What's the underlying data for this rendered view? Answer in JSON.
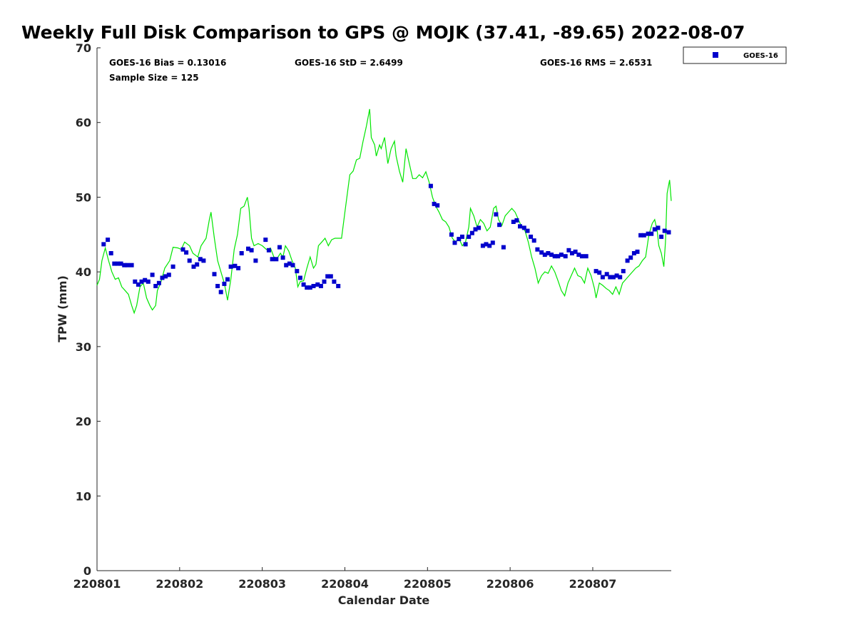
{
  "chart_data": {
    "type": "scatter",
    "title": "Weekly Full Disk Comparison to GPS @ MOJK (37.41, -89.65) 2022-08-07",
    "xlabel": "Calendar Date",
    "ylabel": "TPW (mm)",
    "ylim": [
      0,
      70
    ],
    "xlim": [
      0,
      6.95
    ],
    "yticks": [
      "0",
      "10",
      "20",
      "30",
      "40",
      "50",
      "60",
      "70"
    ],
    "xticks": [
      "220801",
      "220802",
      "220803",
      "220804",
      "220805",
      "220806",
      "220807"
    ],
    "grid": false,
    "legend_position": "outside-top-right",
    "stats": {
      "bias": "GOES-16 Bias = 0.13016",
      "std": "GOES-16 StD = 2.6499",
      "rms": "GOES-16 RMS = 2.6531",
      "sample": "Sample Size = 125"
    },
    "series": [
      {
        "name": "GOES-16",
        "kind": "markers",
        "color": "#0000cc",
        "points": [
          [
            0.08,
            43.7
          ],
          [
            0.13,
            44.3
          ],
          [
            0.17,
            42.5
          ],
          [
            0.21,
            41.1
          ],
          [
            0.25,
            41.1
          ],
          [
            0.29,
            41.1
          ],
          [
            0.33,
            40.9
          ],
          [
            0.37,
            40.9
          ],
          [
            0.42,
            40.9
          ],
          [
            0.46,
            38.7
          ],
          [
            0.5,
            38.3
          ],
          [
            0.54,
            38.7
          ],
          [
            0.58,
            38.9
          ],
          [
            0.62,
            38.7
          ],
          [
            0.67,
            39.6
          ],
          [
            0.71,
            38.1
          ],
          [
            0.75,
            38.5
          ],
          [
            0.79,
            39.2
          ],
          [
            0.83,
            39.4
          ],
          [
            0.87,
            39.6
          ],
          [
            0.92,
            40.7
          ],
          [
            1.04,
            43.0
          ],
          [
            1.08,
            42.6
          ],
          [
            1.12,
            41.5
          ],
          [
            1.17,
            40.7
          ],
          [
            1.21,
            41.0
          ],
          [
            1.25,
            41.7
          ],
          [
            1.29,
            41.5
          ],
          [
            1.42,
            39.7
          ],
          [
            1.46,
            38.1
          ],
          [
            1.5,
            37.3
          ],
          [
            1.54,
            38.4
          ],
          [
            1.58,
            39.0
          ],
          [
            1.62,
            40.7
          ],
          [
            1.67,
            40.8
          ],
          [
            1.71,
            40.5
          ],
          [
            1.75,
            42.5
          ],
          [
            1.83,
            43.1
          ],
          [
            1.87,
            42.9
          ],
          [
            1.92,
            41.5
          ],
          [
            2.04,
            44.3
          ],
          [
            2.08,
            42.9
          ],
          [
            2.12,
            41.7
          ],
          [
            2.17,
            41.7
          ],
          [
            2.21,
            43.3
          ],
          [
            2.25,
            41.9
          ],
          [
            2.29,
            40.9
          ],
          [
            2.33,
            41.1
          ],
          [
            2.37,
            40.9
          ],
          [
            2.42,
            40.1
          ],
          [
            2.46,
            39.2
          ],
          [
            2.5,
            38.3
          ],
          [
            2.54,
            37.9
          ],
          [
            2.58,
            37.9
          ],
          [
            2.62,
            38.1
          ],
          [
            2.67,
            38.3
          ],
          [
            2.71,
            38.1
          ],
          [
            2.75,
            38.7
          ],
          [
            2.79,
            39.4
          ],
          [
            2.83,
            39.4
          ],
          [
            2.87,
            38.7
          ],
          [
            2.92,
            38.1
          ],
          [
            4.04,
            51.5
          ],
          [
            4.08,
            49.1
          ],
          [
            4.12,
            48.9
          ],
          [
            4.29,
            45.0
          ],
          [
            4.33,
            43.9
          ],
          [
            4.38,
            44.4
          ],
          [
            4.42,
            44.7
          ],
          [
            4.46,
            43.7
          ],
          [
            4.5,
            44.7
          ],
          [
            4.54,
            45.2
          ],
          [
            4.58,
            45.7
          ],
          [
            4.62,
            45.9
          ],
          [
            4.67,
            43.5
          ],
          [
            4.71,
            43.7
          ],
          [
            4.75,
            43.5
          ],
          [
            4.79,
            43.9
          ],
          [
            4.83,
            47.7
          ],
          [
            4.87,
            46.3
          ],
          [
            4.92,
            43.3
          ],
          [
            5.04,
            46.7
          ],
          [
            5.08,
            46.9
          ],
          [
            5.12,
            46.1
          ],
          [
            5.17,
            45.9
          ],
          [
            5.21,
            45.5
          ],
          [
            5.25,
            44.7
          ],
          [
            5.29,
            44.2
          ],
          [
            5.33,
            43.0
          ],
          [
            5.38,
            42.6
          ],
          [
            5.42,
            42.3
          ],
          [
            5.46,
            42.5
          ],
          [
            5.5,
            42.3
          ],
          [
            5.54,
            42.1
          ],
          [
            5.58,
            42.1
          ],
          [
            5.62,
            42.3
          ],
          [
            5.67,
            42.1
          ],
          [
            5.71,
            42.9
          ],
          [
            5.75,
            42.5
          ],
          [
            5.79,
            42.7
          ],
          [
            5.83,
            42.3
          ],
          [
            5.87,
            42.1
          ],
          [
            5.92,
            42.1
          ],
          [
            6.04,
            40.1
          ],
          [
            6.08,
            39.9
          ],
          [
            6.12,
            39.3
          ],
          [
            6.17,
            39.7
          ],
          [
            6.21,
            39.3
          ],
          [
            6.25,
            39.3
          ],
          [
            6.29,
            39.5
          ],
          [
            6.33,
            39.3
          ],
          [
            6.37,
            40.1
          ],
          [
            6.42,
            41.5
          ],
          [
            6.46,
            41.9
          ],
          [
            6.5,
            42.5
          ],
          [
            6.54,
            42.7
          ],
          [
            6.58,
            44.9
          ],
          [
            6.62,
            44.9
          ],
          [
            6.67,
            45.1
          ],
          [
            6.71,
            45.1
          ],
          [
            6.75,
            45.7
          ],
          [
            6.79,
            45.9
          ],
          [
            6.83,
            44.7
          ],
          [
            6.87,
            45.5
          ],
          [
            6.92,
            45.3
          ]
        ]
      },
      {
        "name": "GPS",
        "kind": "line",
        "color": "#00e600",
        "points": [
          [
            0.0,
            38.2
          ],
          [
            0.03,
            39.0
          ],
          [
            0.06,
            41.5
          ],
          [
            0.1,
            43.2
          ],
          [
            0.14,
            41.5
          ],
          [
            0.18,
            40.0
          ],
          [
            0.22,
            39.0
          ],
          [
            0.26,
            39.2
          ],
          [
            0.3,
            38.0
          ],
          [
            0.34,
            37.5
          ],
          [
            0.38,
            37.0
          ],
          [
            0.42,
            35.5
          ],
          [
            0.45,
            34.5
          ],
          [
            0.48,
            35.5
          ],
          [
            0.52,
            38.0
          ],
          [
            0.56,
            38.5
          ],
          [
            0.6,
            36.5
          ],
          [
            0.64,
            35.5
          ],
          [
            0.67,
            34.9
          ],
          [
            0.71,
            35.5
          ],
          [
            0.73,
            37.5
          ],
          [
            0.77,
            38.5
          ],
          [
            0.82,
            40.5
          ],
          [
            0.88,
            41.5
          ],
          [
            0.92,
            43.3
          ],
          [
            0.98,
            43.2
          ],
          [
            1.02,
            43.0
          ],
          [
            1.06,
            44.0
          ],
          [
            1.12,
            43.5
          ],
          [
            1.16,
            42.5
          ],
          [
            1.22,
            42.0
          ],
          [
            1.26,
            43.5
          ],
          [
            1.32,
            44.5
          ],
          [
            1.36,
            47.0
          ],
          [
            1.38,
            48.0
          ],
          [
            1.42,
            44.5
          ],
          [
            1.46,
            41.5
          ],
          [
            1.5,
            40.0
          ],
          [
            1.54,
            38.5
          ],
          [
            1.58,
            36.2
          ],
          [
            1.62,
            39.0
          ],
          [
            1.66,
            43.0
          ],
          [
            1.7,
            45.0
          ],
          [
            1.74,
            48.5
          ],
          [
            1.78,
            48.8
          ],
          [
            1.82,
            50.0
          ],
          [
            1.84,
            48.5
          ],
          [
            1.87,
            44.5
          ],
          [
            1.9,
            43.5
          ],
          [
            1.95,
            43.8
          ],
          [
            2.0,
            43.5
          ],
          [
            2.05,
            43.0
          ],
          [
            2.1,
            43.2
          ],
          [
            2.14,
            42.0
          ],
          [
            2.18,
            41.8
          ],
          [
            2.22,
            42.5
          ],
          [
            2.25,
            42.0
          ],
          [
            2.28,
            43.5
          ],
          [
            2.32,
            42.8
          ],
          [
            2.36,
            41.5
          ],
          [
            2.4,
            40.5
          ],
          [
            2.43,
            38.0
          ],
          [
            2.46,
            38.7
          ],
          [
            2.5,
            38.8
          ],
          [
            2.54,
            40.5
          ],
          [
            2.58,
            42.0
          ],
          [
            2.62,
            40.5
          ],
          [
            2.65,
            41.0
          ],
          [
            2.68,
            43.5
          ],
          [
            2.72,
            44.0
          ],
          [
            2.76,
            44.5
          ],
          [
            2.8,
            43.5
          ],
          [
            2.84,
            44.3
          ],
          [
            2.88,
            44.5
          ],
          [
            2.92,
            44.5
          ],
          [
            2.96,
            44.5
          ],
          [
            3.0,
            48.0
          ],
          [
            3.06,
            53.0
          ],
          [
            3.1,
            53.5
          ],
          [
            3.14,
            55.0
          ],
          [
            3.18,
            55.2
          ],
          [
            3.22,
            57.5
          ],
          [
            3.26,
            59.5
          ],
          [
            3.3,
            61.8
          ],
          [
            3.32,
            58.0
          ],
          [
            3.36,
            57.0
          ],
          [
            3.38,
            55.5
          ],
          [
            3.42,
            57.0
          ],
          [
            3.44,
            56.5
          ],
          [
            3.48,
            58.0
          ],
          [
            3.52,
            54.5
          ],
          [
            3.56,
            56.5
          ],
          [
            3.6,
            57.5
          ],
          [
            3.62,
            55.5
          ],
          [
            3.66,
            53.5
          ],
          [
            3.7,
            52.0
          ],
          [
            3.74,
            56.5
          ],
          [
            3.78,
            54.5
          ],
          [
            3.82,
            52.5
          ],
          [
            3.86,
            52.5
          ],
          [
            3.9,
            53.0
          ],
          [
            3.94,
            52.6
          ],
          [
            3.98,
            53.4
          ],
          [
            4.02,
            52.0
          ],
          [
            4.06,
            50.0
          ],
          [
            4.1,
            48.8
          ],
          [
            4.14,
            48.0
          ],
          [
            4.18,
            47.0
          ],
          [
            4.22,
            46.7
          ],
          [
            4.26,
            46.0
          ],
          [
            4.3,
            44.5
          ],
          [
            4.34,
            44.0
          ],
          [
            4.38,
            44.5
          ],
          [
            4.42,
            43.5
          ],
          [
            4.46,
            44.0
          ],
          [
            4.5,
            46.0
          ],
          [
            4.52,
            48.5
          ],
          [
            4.56,
            47.5
          ],
          [
            4.6,
            46.0
          ],
          [
            4.64,
            47.0
          ],
          [
            4.68,
            46.5
          ],
          [
            4.72,
            45.5
          ],
          [
            4.76,
            46.0
          ],
          [
            4.8,
            48.5
          ],
          [
            4.83,
            48.8
          ],
          [
            4.86,
            47.0
          ],
          [
            4.9,
            46.2
          ],
          [
            4.94,
            47.5
          ],
          [
            4.98,
            48.0
          ],
          [
            5.02,
            48.5
          ],
          [
            5.06,
            48.0
          ],
          [
            5.1,
            47.0
          ],
          [
            5.14,
            46.0
          ],
          [
            5.18,
            45.5
          ],
          [
            5.22,
            44.0
          ],
          [
            5.26,
            42.0
          ],
          [
            5.3,
            40.5
          ],
          [
            5.34,
            38.5
          ],
          [
            5.38,
            39.5
          ],
          [
            5.42,
            40.0
          ],
          [
            5.46,
            39.8
          ],
          [
            5.5,
            40.8
          ],
          [
            5.54,
            40.0
          ],
          [
            5.58,
            38.8
          ],
          [
            5.62,
            37.5
          ],
          [
            5.66,
            36.8
          ],
          [
            5.7,
            38.5
          ],
          [
            5.74,
            39.5
          ],
          [
            5.78,
            40.5
          ],
          [
            5.82,
            39.5
          ],
          [
            5.86,
            39.3
          ],
          [
            5.9,
            38.5
          ],
          [
            5.94,
            40.5
          ],
          [
            5.98,
            39.5
          ],
          [
            6.02,
            37.8
          ],
          [
            6.04,
            36.5
          ],
          [
            6.08,
            38.5
          ],
          [
            6.12,
            38.2
          ],
          [
            6.16,
            37.8
          ],
          [
            6.2,
            37.5
          ],
          [
            6.24,
            37.0
          ],
          [
            6.28,
            38.0
          ],
          [
            6.32,
            37.0
          ],
          [
            6.36,
            38.5
          ],
          [
            6.4,
            39.0
          ],
          [
            6.44,
            39.5
          ],
          [
            6.48,
            40.0
          ],
          [
            6.52,
            40.5
          ],
          [
            6.56,
            40.8
          ],
          [
            6.6,
            41.5
          ],
          [
            6.64,
            42.0
          ],
          [
            6.68,
            45.0
          ],
          [
            6.72,
            46.5
          ],
          [
            6.75,
            47.0
          ],
          [
            6.78,
            45.5
          ],
          [
            6.8,
            43.5
          ],
          [
            6.83,
            42.5
          ],
          [
            6.86,
            40.7
          ],
          [
            6.88,
            44.0
          ],
          [
            6.9,
            50.5
          ],
          [
            6.93,
            52.3
          ],
          [
            6.95,
            49.5
          ]
        ]
      }
    ]
  }
}
